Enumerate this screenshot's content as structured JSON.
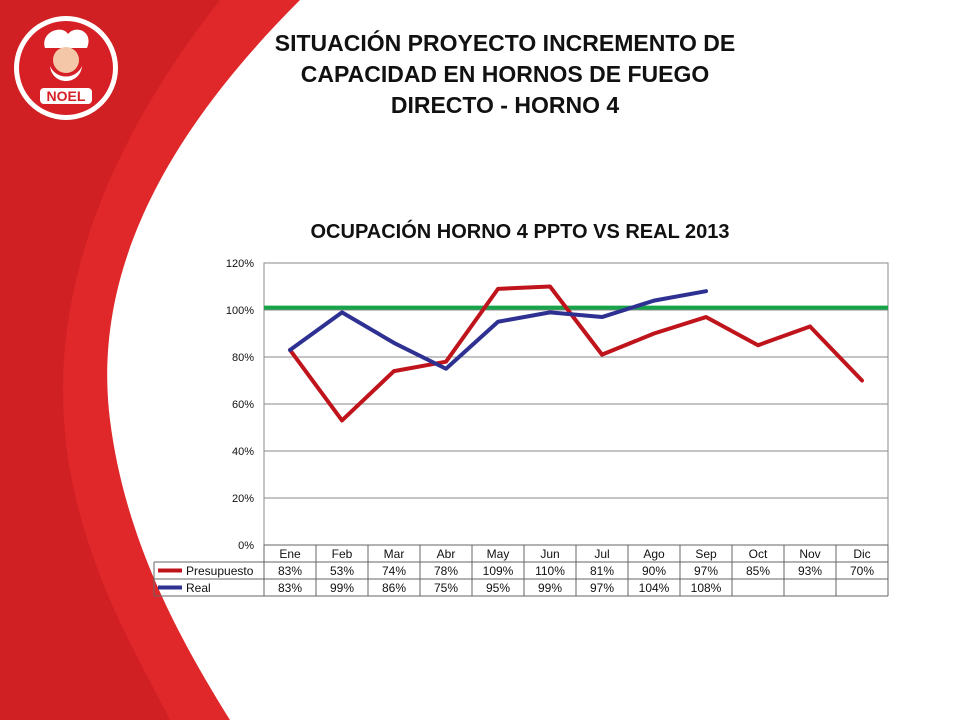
{
  "slide": {
    "title_lines": [
      "SITUACIÓN PROYECTO  INCREMENTO DE",
      "CAPACIDAD EN HORNOS DE FUEGO",
      "DIRECTO - HORNO 4"
    ],
    "logo_text": "NOEL",
    "colors": {
      "red": "#e0282a",
      "dark_red": "#c21a1f"
    }
  },
  "chart_data": {
    "type": "line",
    "title": "OCUPACIÓN HORNO 4 PPTO VS REAL 2013",
    "categories": [
      "Ene",
      "Feb",
      "Mar",
      "Abr",
      "May",
      "Jun",
      "Jul",
      "Ago",
      "Sep",
      "Oct",
      "Nov",
      "Dic"
    ],
    "y_ticks": [
      "0%",
      "20%",
      "40%",
      "60%",
      "80%",
      "100%",
      "120%"
    ],
    "ylim": [
      0,
      120
    ],
    "grid": true,
    "legend": "data-table",
    "series": [
      {
        "name": "Presupuesto",
        "color": "#c0141c",
        "values": [
          83,
          53,
          74,
          78,
          109,
          110,
          81,
          90,
          97,
          85,
          93,
          70
        ],
        "labels": [
          "83%",
          "53%",
          "74%",
          "78%",
          "109%",
          "110%",
          "81%",
          "90%",
          "97%",
          "85%",
          "93%",
          "70%"
        ]
      },
      {
        "name": "Real",
        "color": "#2e3191",
        "values": [
          83,
          99,
          86,
          75,
          95,
          99,
          97,
          104,
          108,
          null,
          null,
          null
        ],
        "labels": [
          "83%",
          "99%",
          "86%",
          "75%",
          "95%",
          "99%",
          "97%",
          "104%",
          "108%",
          "",
          "",
          ""
        ]
      }
    ],
    "reference_line": {
      "value": 101,
      "color": "#16a34a"
    }
  }
}
